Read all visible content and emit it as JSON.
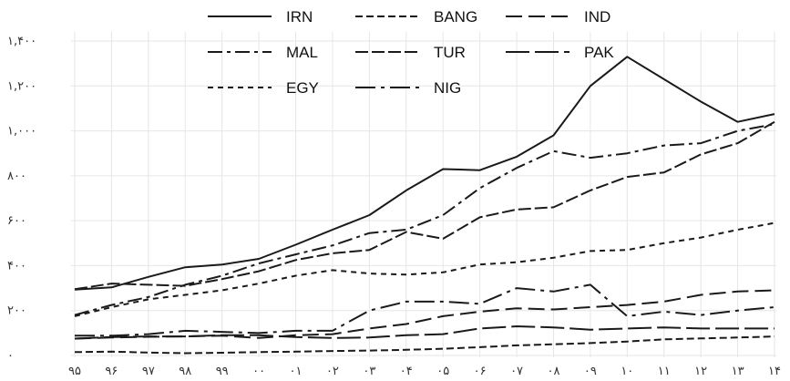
{
  "chart_data": {
    "type": "line",
    "title": "",
    "xlabel": "",
    "ylabel": "",
    "categories": [
      "۹۵",
      "۹۶",
      "۹۷",
      "۹۸",
      "۹۹",
      "۰۰",
      "۰۱",
      "۰۲",
      "۰۳",
      "۰۴",
      "۰۵",
      "۰۶",
      "۰۷",
      "۰۸",
      "۰۹",
      "۱۰",
      "۱۱",
      "۱۲",
      "۱۳",
      "۱۴"
    ],
    "y_ticks": [
      {
        "value": 0,
        "label": "۰"
      },
      {
        "value": 200,
        "label": "۲۰۰"
      },
      {
        "value": 400,
        "label": "۴۰۰"
      },
      {
        "value": 600,
        "label": "۶۰۰"
      },
      {
        "value": 800,
        "label": "۸۰۰"
      },
      {
        "value": 1000,
        "label": "۱,۰۰۰"
      },
      {
        "value": 1200,
        "label": "۱,۲۰۰"
      },
      {
        "value": 1400,
        "label": "۱,۴۰۰"
      }
    ],
    "ylim": [
      0,
      1400
    ],
    "grid": true,
    "legend_position": "top",
    "series": [
      {
        "name": "IRN",
        "dash": "solid",
        "values": [
          293,
          303,
          350,
          393,
          405,
          430,
          493,
          560,
          625,
          735,
          830,
          825,
          885,
          980,
          1200,
          1330,
          1230,
          1130,
          1040,
          1075
        ]
      },
      {
        "name": "BANG",
        "dash": "8,4",
        "values": [
          15,
          17,
          13,
          10,
          12,
          15,
          17,
          20,
          22,
          25,
          30,
          37,
          45,
          50,
          55,
          62,
          72,
          76,
          80,
          85
        ]
      },
      {
        "name": "IND",
        "dash": "18,7",
        "values": [
          75,
          80,
          83,
          85,
          88,
          78,
          90,
          95,
          120,
          140,
          175,
          195,
          210,
          205,
          215,
          225,
          240,
          270,
          285,
          290
        ]
      },
      {
        "name": "MAL",
        "dash": "16,5,4,5",
        "values": [
          180,
          225,
          260,
          315,
          355,
          410,
          450,
          490,
          545,
          560,
          625,
          745,
          835,
          910,
          880,
          900,
          935,
          945,
          1000,
          1030
        ]
      },
      {
        "name": "TUR",
        "dash": "14,4",
        "values": [
          295,
          320,
          315,
          310,
          340,
          375,
          425,
          455,
          470,
          550,
          520,
          615,
          650,
          660,
          735,
          795,
          815,
          895,
          945,
          1040
        ]
      },
      {
        "name": "PAK",
        "dash": "26,6",
        "values": [
          75,
          82,
          85,
          85,
          90,
          90,
          82,
          78,
          80,
          90,
          95,
          120,
          130,
          125,
          115,
          120,
          125,
          120,
          120,
          120
        ]
      },
      {
        "name": "EGY",
        "dash": "6,5",
        "values": [
          175,
          215,
          250,
          270,
          290,
          320,
          355,
          380,
          365,
          360,
          370,
          405,
          415,
          435,
          465,
          470,
          500,
          525,
          560,
          590
        ]
      },
      {
        "name": "NIG",
        "dash": "22,6,4,6",
        "values": [
          88,
          88,
          95,
          110,
          105,
          100,
          110,
          110,
          200,
          240,
          240,
          230,
          300,
          285,
          315,
          175,
          195,
          180,
          200,
          215
        ]
      }
    ]
  }
}
